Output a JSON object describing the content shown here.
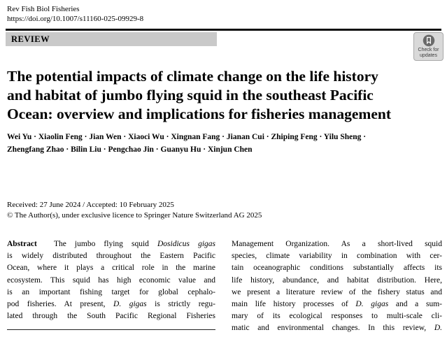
{
  "page": {
    "journal": "Rev Fish Biol Fisheries",
    "doi": "https://doi.org/10.1007/s11160-025-09929-8",
    "section_label": "REVIEW",
    "badge": {
      "icon": "crossmark-bookmark-icon",
      "line1": "Check for",
      "line2": "updates"
    },
    "title_lines": [
      "The potential impacts of climate change on the life history",
      "and habitat of jumbo flying squid in the southeast Pacific",
      "Ocean: overview and implications for fisheries management"
    ],
    "author_lines": [
      "Wei Yu · Xiaolin Feng · Jian Wen · Xiaoci Wu · Xingnan Fang · Jianan Cui · Zhiping Feng · Yilu Sheng ·",
      "Zhengfang Zhao · Bilin Liu · Pengchao Jin · Guanyu Hu · Xinjun Chen"
    ],
    "history": "Received: 27 June 2024 / Accepted: 10 February 2025",
    "copyright": "© The Author(s), under exclusive licence to Springer Nature Switzerland AG 2025",
    "abstract": {
      "left_lines": [
        "<b>Abstract</b>&#160;&#160;The jumbo flying squid <i>Dosidicus gigas</i>",
        "is widely distributed throughout the Eastern Pacific",
        "Ocean, where it plays a critical role in the marine",
        "ecosystem. This squid has high economic value and",
        "is an important fishing target for global cephalo-",
        "pod fisheries. At present, <i>D. gigas</i> is strictly regu-",
        "lated through the South Pacific Regional Fisheries"
      ],
      "right_lines": [
        "Management Organization. As a short-lived squid",
        "species, climate variability in combination with cer-",
        "tain oceanographic conditions substantially affects its",
        "life history, abundance, and habitat distribution. Here,",
        "we present a literature review of the fishery status and",
        "main life history processes of <i>D. gigas</i> and a sum-",
        "mary of its ecological responses to multi-scale cli-",
        "matic and environmental changes. In this review, <i>D.</i>"
      ]
    },
    "colors": {
      "review_bar_bg": "#c9c9c9",
      "top_rule": "#111111",
      "badge_bg": "#d9d9d9",
      "badge_border": "#a9a9a9",
      "badge_icon": "#6a6a6a",
      "text": "#000000"
    }
  }
}
